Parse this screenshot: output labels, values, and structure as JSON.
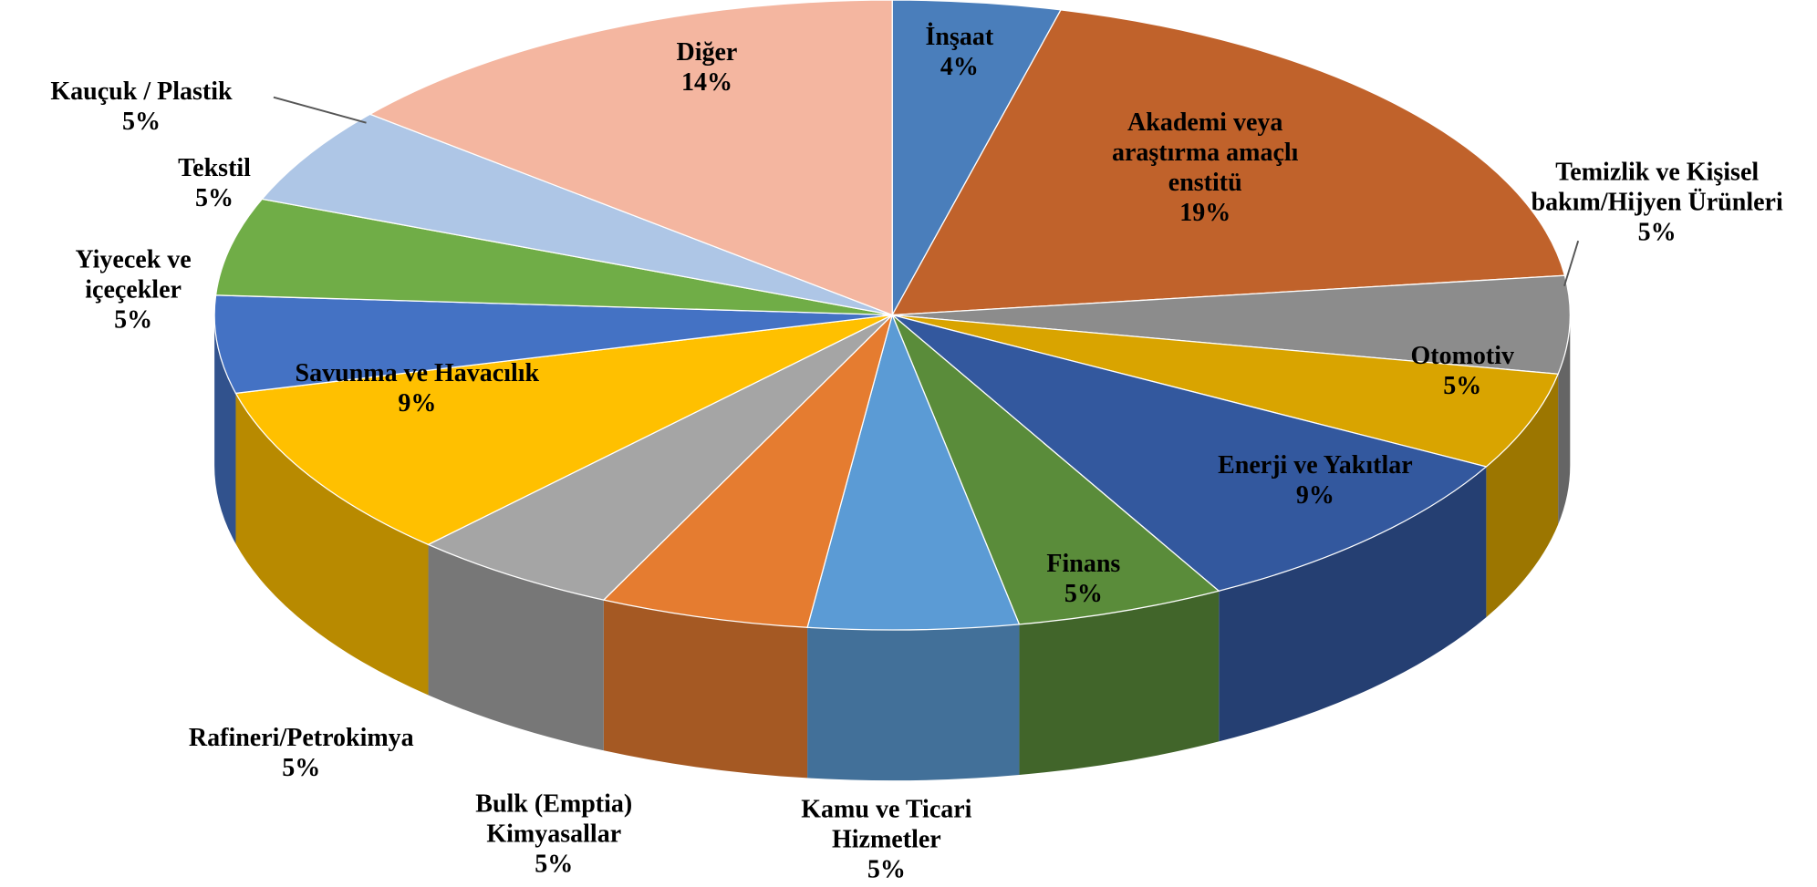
{
  "chart_data": {
    "type": "pie3d",
    "categories": [
      "İnşaat",
      "Akademi veya araştırma amaçlı enstitü",
      "Temizlik ve Kişisel bakım/Hijyen Ürünleri",
      "Otomotiv",
      "Enerji ve Yakıtlar",
      "Finans",
      "Kamu ve Ticari Hizmetler",
      "Bulk (Emptia) Kimyasallar",
      "Rafineri/Petrokimya",
      "Savunma ve Havacılık",
      "Yiyecek ve içeçekler",
      "Tekstil",
      "Kauçuk / Plastik",
      "Diğer"
    ],
    "values": [
      4,
      19,
      5,
      5,
      9,
      5,
      5,
      5,
      5,
      9,
      5,
      5,
      5,
      14
    ],
    "value_labels": [
      "4%",
      "19%",
      "5%",
      "5%",
      "9%",
      "5%",
      "5%",
      "5%",
      "5%",
      "9%",
      "5%",
      "5%",
      "5%",
      "14%"
    ],
    "colors": [
      "#4a7ebb",
      "#c0622b",
      "#8c8c8c",
      "#d9a400",
      "#33589e",
      "#5a8c3a",
      "#5b9bd5",
      "#e57c30",
      "#a5a5a5",
      "#ffc000",
      "#4472c4",
      "#70ad47",
      "#aec6e6",
      "#f4b6a0"
    ]
  }
}
